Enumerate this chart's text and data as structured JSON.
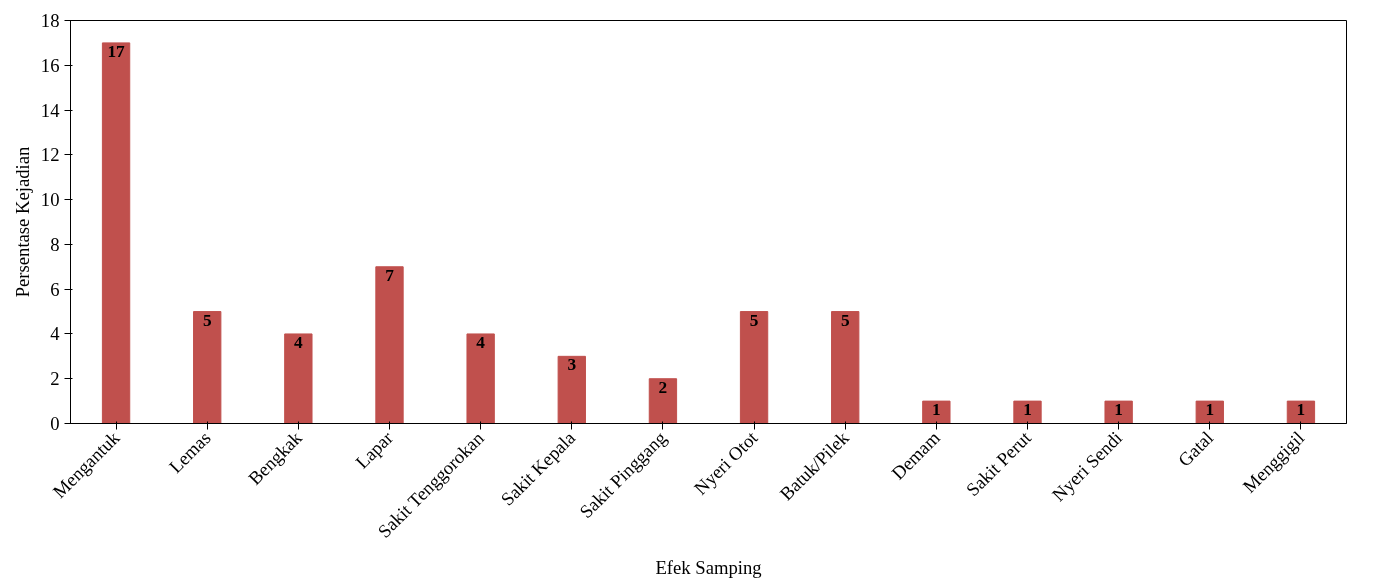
{
  "chart_data": {
    "type": "bar",
    "xlabel": "Efek Samping",
    "ylabel": "Persentase Kejadian",
    "categories": [
      "Mengantuk",
      "Lemas",
      "Bengkak",
      "Lapar",
      "Sakit Tenggorokan",
      "Sakit Kepala",
      "Sakit Pinggang",
      "Nyeri Otot",
      "Batuk/Pilek",
      "Demam",
      "Sakit Perut",
      "Nyeri Sendi",
      "Gatal",
      "Menggigil"
    ],
    "values": [
      17,
      5,
      4,
      7,
      4,
      3,
      2,
      5,
      5,
      1,
      1,
      1,
      1,
      1
    ],
    "color": "#c0504d",
    "ylim": [
      0,
      18
    ],
    "yticks": [
      0,
      2,
      4,
      6,
      8,
      10,
      12,
      14,
      16,
      18
    ],
    "data_labels": true,
    "grid": false
  }
}
